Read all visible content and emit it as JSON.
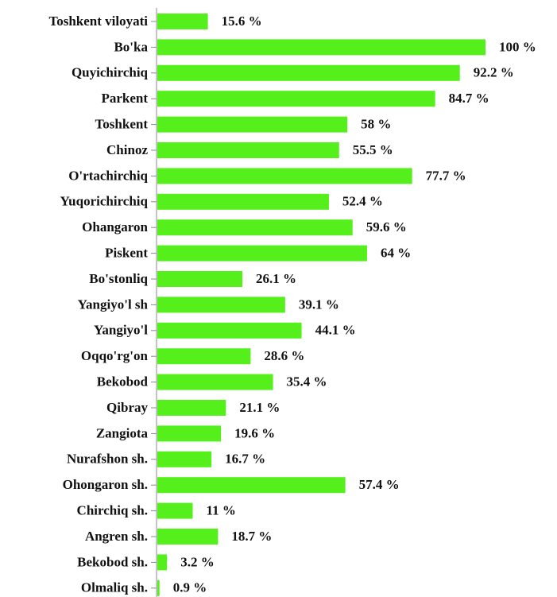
{
  "chart_data": {
    "type": "bar",
    "orientation": "horizontal",
    "color": "#55f01c",
    "categories": [
      "Toshkent viloyati",
      "Bo'ka",
      "Quyichirchiq",
      "Parkent",
      "Toshkent",
      "Chinoz",
      "O'rtachirchiq",
      "Yuqorichirchiq",
      "Ohangaron",
      "Piskent",
      "Bo'stonliq",
      "Yangiyo'l sh",
      "Yangiyo'l",
      "Oqqo'rg'on",
      "Bekobod",
      "Qibray",
      "Zangiota",
      "Nurafshon sh.",
      "Ohongaron sh.",
      "Chirchiq sh.",
      "Angren sh.",
      "Bekobod sh.",
      "Olmaliq sh."
    ],
    "values": [
      15.6,
      100,
      92.2,
      84.7,
      58,
      55.5,
      77.7,
      52.4,
      59.6,
      64,
      26.1,
      39.1,
      44.1,
      28.6,
      35.4,
      21.1,
      19.6,
      16.7,
      57.4,
      11,
      18.7,
      3.2,
      0.9
    ],
    "value_labels": [
      "15.6 %",
      "100 %",
      "92.2 %",
      "84.7 %",
      "58 %",
      "55.5 %",
      "77.7 %",
      "52.4 %",
      "59.6 %",
      "64 %",
      "26.1 %",
      "39.1 %",
      "44.1 %",
      "28.6 %",
      "35.4 %",
      "21.1 %",
      "19.6 %",
      "16.7 %",
      "57.4 %",
      "11 %",
      "18.7 %",
      "3.2 %",
      "0.9 %"
    ]
  }
}
